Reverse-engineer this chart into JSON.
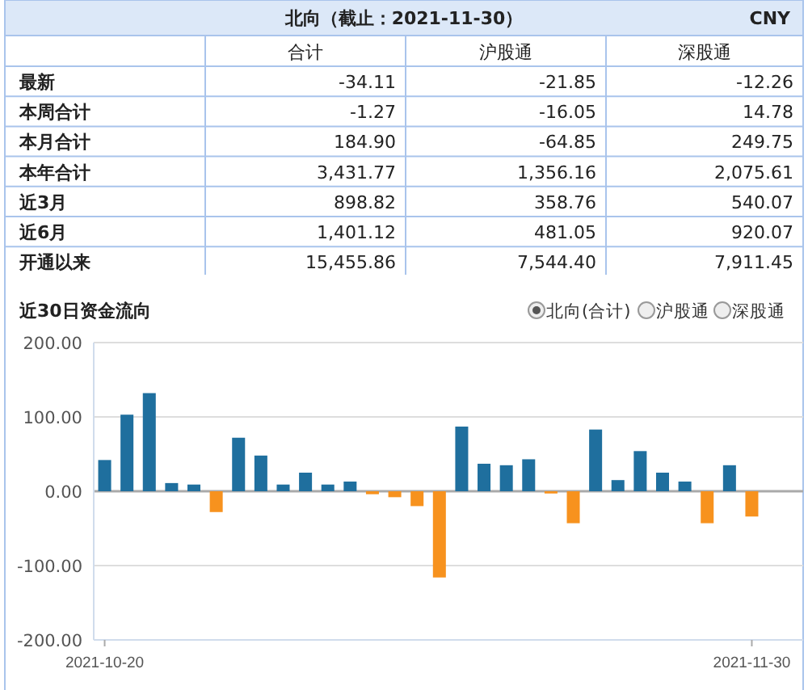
{
  "chart_data": [
    {
      "type": "other",
      "title": "北向（截止：2021-11-30）",
      "subtitle": "CNY",
      "categories": [
        "合计",
        "沪股通",
        "深股通"
      ],
      "y_categories": [
        "最新",
        "本周合计",
        "本月合计",
        "本年合计",
        "近3月",
        "近6月",
        "开通以来"
      ],
      "cell_labels": [
        [
          "-34.11",
          "-21.85",
          "-12.26"
        ],
        [
          "-1.27",
          "-16.05",
          "14.78"
        ],
        [
          "184.90",
          "-64.85",
          "249.75"
        ],
        [
          "3,431.77",
          "1,356.16",
          "2,075.61"
        ],
        [
          "898.82",
          "358.76",
          "540.07"
        ],
        [
          "1,401.12",
          "481.05",
          "920.07"
        ],
        [
          "15,455.86",
          "7,544.40",
          "7,911.45"
        ]
      ]
    },
    {
      "type": "bar",
      "title": "近30日资金流向",
      "annotations": [
        "北向(合计)",
        "沪股通",
        "深股通"
      ],
      "categories": [
        "2021-10-20",
        null,
        null,
        null,
        null,
        null,
        null,
        null,
        null,
        null,
        null,
        null,
        null,
        null,
        null,
        null,
        null,
        null,
        null,
        null,
        null,
        null,
        null,
        null,
        null,
        null,
        null,
        null,
        null,
        "2021-11-30"
      ],
      "values": [
        42,
        103,
        132,
        11,
        9,
        -28,
        72,
        48,
        9,
        25,
        9,
        13,
        -4,
        -8,
        -20,
        -116,
        87,
        37,
        35,
        43,
        -3,
        -43,
        83,
        15,
        54,
        25,
        13,
        -43,
        35,
        -34
      ],
      "colors": [
        "#1f6f9e",
        "#1f6f9e",
        "#1f6f9e",
        "#1f6f9e",
        "#1f6f9e",
        "#f7921e",
        "#1f6f9e",
        "#1f6f9e",
        "#1f6f9e",
        "#1f6f9e",
        "#1f6f9e",
        "#1f6f9e",
        "#f7921e",
        "#f7921e",
        "#f7921e",
        "#f7921e",
        "#1f6f9e",
        "#1f6f9e",
        "#1f6f9e",
        "#1f6f9e",
        "#f7921e",
        "#f7921e",
        "#1f6f9e",
        "#1f6f9e",
        "#1f6f9e",
        "#1f6f9e",
        "#1f6f9e",
        "#f7921e",
        "#1f6f9e",
        "#f7921e"
      ],
      "ylim": [
        -200,
        200
      ],
      "yticks": [
        {
          "value": -200,
          "label": "-200.00"
        },
        {
          "value": -100,
          "label": "-100.00"
        },
        {
          "value": 0,
          "label": "0.00"
        },
        {
          "value": 100,
          "label": "100.00"
        },
        {
          "value": 200,
          "label": "200.00"
        }
      ],
      "grid": "y"
    }
  ]
}
